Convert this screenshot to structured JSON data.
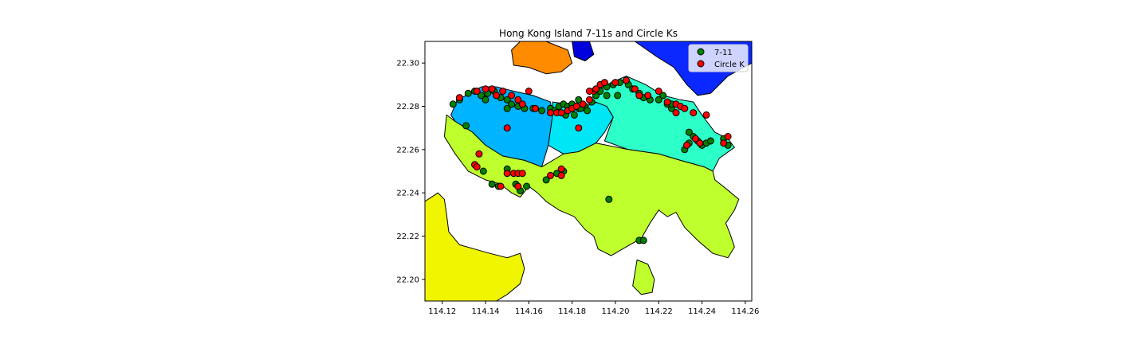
{
  "chart_data": {
    "type": "scatter",
    "title": "Hong Kong Island 7-11s and Circle Ks",
    "xlabel": "",
    "ylabel": "",
    "xlim": [
      114.112,
      114.263
    ],
    "ylim": [
      22.19,
      22.31
    ],
    "x_ticks": [
      "114.12",
      "114.14",
      "114.16",
      "114.18",
      "114.20",
      "114.22",
      "114.24",
      "114.26"
    ],
    "y_ticks": [
      "22.20",
      "22.22",
      "22.24",
      "22.26",
      "22.28",
      "22.30"
    ],
    "legend": {
      "placement": "top-right"
    },
    "districts": [
      {
        "color": "#00b4ff",
        "points": [
          [
            114.124,
            22.276
          ],
          [
            114.127,
            22.283
          ],
          [
            114.133,
            22.286
          ],
          [
            114.138,
            22.289
          ],
          [
            114.145,
            22.289
          ],
          [
            114.153,
            22.287
          ],
          [
            114.162,
            22.285
          ],
          [
            114.17,
            22.282
          ],
          [
            114.171,
            22.276
          ],
          [
            114.169,
            22.262
          ],
          [
            114.166,
            22.252
          ],
          [
            114.158,
            22.255
          ],
          [
            114.148,
            22.257
          ],
          [
            114.14,
            22.262
          ],
          [
            114.134,
            22.268
          ],
          [
            114.126,
            22.273
          ]
        ]
      },
      {
        "color": "#00e6f5",
        "points": [
          [
            114.171,
            22.282
          ],
          [
            114.178,
            22.281
          ],
          [
            114.186,
            22.28
          ],
          [
            114.192,
            22.282
          ],
          [
            114.196,
            22.28
          ],
          [
            114.199,
            22.275
          ],
          [
            114.195,
            22.268
          ],
          [
            114.191,
            22.263
          ],
          [
            114.183,
            22.259
          ],
          [
            114.176,
            22.258
          ],
          [
            114.169,
            22.262
          ],
          [
            114.171,
            22.276
          ]
        ]
      },
      {
        "color": "#2dffc8",
        "points": [
          [
            114.188,
            22.283
          ],
          [
            114.196,
            22.29
          ],
          [
            114.205,
            22.294
          ],
          [
            114.214,
            22.29
          ],
          [
            114.222,
            22.285
          ],
          [
            114.23,
            22.283
          ],
          [
            114.236,
            22.282
          ],
          [
            114.24,
            22.276
          ],
          [
            114.246,
            22.268
          ],
          [
            114.252,
            22.265
          ],
          [
            114.255,
            22.261
          ],
          [
            114.248,
            22.256
          ],
          [
            114.245,
            22.25
          ],
          [
            114.241,
            22.252
          ],
          [
            114.23,
            22.255
          ],
          [
            114.22,
            22.258
          ],
          [
            114.206,
            22.26
          ],
          [
            114.195,
            22.264
          ],
          [
            114.199,
            22.275
          ],
          [
            114.196,
            22.28
          ]
        ]
      },
      {
        "color": "#beff2d",
        "points": [
          [
            114.122,
            22.276
          ],
          [
            114.126,
            22.273
          ],
          [
            114.134,
            22.268
          ],
          [
            114.14,
            22.262
          ],
          [
            114.148,
            22.257
          ],
          [
            114.158,
            22.255
          ],
          [
            114.166,
            22.252
          ],
          [
            114.176,
            22.258
          ],
          [
            114.183,
            22.259
          ],
          [
            114.191,
            22.263
          ],
          [
            114.206,
            22.26
          ],
          [
            114.22,
            22.258
          ],
          [
            114.23,
            22.255
          ],
          [
            114.241,
            22.252
          ],
          [
            114.245,
            22.25
          ],
          [
            114.246,
            22.246
          ],
          [
            114.251,
            22.242
          ],
          [
            114.257,
            22.237
          ],
          [
            114.255,
            22.232
          ],
          [
            114.251,
            22.226
          ],
          [
            114.253,
            22.221
          ],
          [
            114.255,
            22.215
          ],
          [
            114.252,
            22.21
          ],
          [
            114.245,
            22.212
          ],
          [
            114.238,
            22.218
          ],
          [
            114.232,
            22.224
          ],
          [
            114.228,
            22.231
          ],
          [
            114.224,
            22.229
          ],
          [
            114.22,
            22.232
          ],
          [
            114.216,
            22.226
          ],
          [
            114.212,
            22.219
          ],
          [
            114.205,
            22.215
          ],
          [
            114.198,
            22.211
          ],
          [
            114.192,
            22.214
          ],
          [
            114.19,
            22.22
          ],
          [
            114.186,
            22.223
          ],
          [
            114.181,
            22.229
          ],
          [
            114.174,
            22.232
          ],
          [
            114.168,
            22.236
          ],
          [
            114.164,
            22.24
          ],
          [
            114.16,
            22.243
          ],
          [
            114.156,
            22.238
          ],
          [
            114.152,
            22.24
          ],
          [
            114.147,
            22.244
          ],
          [
            114.14,
            22.246
          ],
          [
            114.132,
            22.25
          ],
          [
            114.126,
            22.258
          ],
          [
            114.121,
            22.266
          ]
        ]
      },
      {
        "color": "#beff2d",
        "points": [
          [
            114.21,
            22.209
          ],
          [
            114.215,
            22.207
          ],
          [
            114.218,
            22.2
          ],
          [
            114.217,
            22.194
          ],
          [
            114.212,
            22.193
          ],
          [
            114.208,
            22.197
          ],
          [
            114.209,
            22.203
          ]
        ]
      },
      {
        "color": "#f0f500",
        "points": [
          [
            114.112,
            22.236
          ],
          [
            114.118,
            22.24
          ],
          [
            114.121,
            22.237
          ],
          [
            114.122,
            22.23
          ],
          [
            114.123,
            22.222
          ],
          [
            114.128,
            22.216
          ],
          [
            114.135,
            22.214
          ],
          [
            114.142,
            22.212
          ],
          [
            114.15,
            22.21
          ],
          [
            114.156,
            22.212
          ],
          [
            114.158,
            22.205
          ],
          [
            114.156,
            22.198
          ],
          [
            114.15,
            22.193
          ],
          [
            114.145,
            22.19
          ],
          [
            114.112,
            22.19
          ]
        ]
      },
      {
        "color": "#ff8c00",
        "points": [
          [
            114.152,
            22.306
          ],
          [
            114.156,
            22.31
          ],
          [
            114.168,
            22.31
          ],
          [
            114.178,
            22.306
          ],
          [
            114.18,
            22.3
          ],
          [
            114.175,
            22.296
          ],
          [
            114.168,
            22.295
          ],
          [
            114.16,
            22.298
          ],
          [
            114.153,
            22.299
          ]
        ]
      },
      {
        "color": "#0000dc",
        "points": [
          [
            114.18,
            22.31
          ],
          [
            114.188,
            22.31
          ],
          [
            114.19,
            22.304
          ],
          [
            114.186,
            22.301
          ],
          [
            114.181,
            22.303
          ]
        ]
      },
      {
        "color": "#0a28ff",
        "points": [
          [
            114.209,
            22.31
          ],
          [
            114.263,
            22.31
          ],
          [
            114.263,
            22.3
          ],
          [
            114.252,
            22.294
          ],
          [
            114.244,
            22.286
          ],
          [
            114.238,
            22.285
          ],
          [
            114.233,
            22.29
          ],
          [
            114.227,
            22.298
          ],
          [
            114.219,
            22.303
          ]
        ]
      }
    ],
    "series": [
      {
        "name": "7-11",
        "color": "#008000",
        "points": [
          [
            114.125,
            22.281
          ],
          [
            114.128,
            22.283
          ],
          [
            114.132,
            22.286
          ],
          [
            114.135,
            22.287
          ],
          [
            114.138,
            22.285
          ],
          [
            114.141,
            22.286
          ],
          [
            114.144,
            22.287
          ],
          [
            114.147,
            22.284
          ],
          [
            114.15,
            22.283
          ],
          [
            114.152,
            22.281
          ],
          [
            114.155,
            22.28
          ],
          [
            114.158,
            22.279
          ],
          [
            114.162,
            22.279
          ],
          [
            114.166,
            22.278
          ],
          [
            114.17,
            22.279
          ],
          [
            114.172,
            22.278
          ],
          [
            114.174,
            22.28
          ],
          [
            114.176,
            22.281
          ],
          [
            114.178,
            22.28
          ],
          [
            114.18,
            22.281
          ],
          [
            114.183,
            22.279
          ],
          [
            114.186,
            22.28
          ],
          [
            114.189,
            22.282
          ],
          [
            114.191,
            22.285
          ],
          [
            114.193,
            22.287
          ],
          [
            114.196,
            22.289
          ],
          [
            114.199,
            22.29
          ],
          [
            114.202,
            22.291
          ],
          [
            114.206,
            22.29
          ],
          [
            114.208,
            22.288
          ],
          [
            114.211,
            22.286
          ],
          [
            114.213,
            22.284
          ],
          [
            114.216,
            22.283
          ],
          [
            114.22,
            22.283
          ],
          [
            114.224,
            22.281
          ],
          [
            114.226,
            22.279
          ],
          [
            114.222,
            22.285
          ],
          [
            114.196,
            22.285
          ],
          [
            114.201,
            22.285
          ],
          [
            114.183,
            22.283
          ],
          [
            114.187,
            22.278
          ],
          [
            114.232,
            22.26
          ],
          [
            114.234,
            22.263
          ],
          [
            114.236,
            22.266
          ],
          [
            114.238,
            22.264
          ],
          [
            114.24,
            22.262
          ],
          [
            114.242,
            22.263
          ],
          [
            114.244,
            22.264
          ],
          [
            114.25,
            22.265
          ],
          [
            114.252,
            22.262
          ],
          [
            114.14,
            22.283
          ],
          [
            114.145,
            22.285
          ],
          [
            114.15,
            22.279
          ],
          [
            114.131,
            22.271
          ],
          [
            114.139,
            22.25
          ],
          [
            114.143,
            22.244
          ],
          [
            114.146,
            22.243
          ],
          [
            114.15,
            22.251
          ],
          [
            114.154,
            22.244
          ],
          [
            114.156,
            22.241
          ],
          [
            114.159,
            22.243
          ],
          [
            114.168,
            22.246
          ],
          [
            114.173,
            22.249
          ],
          [
            114.176,
            22.25
          ],
          [
            114.197,
            22.237
          ],
          [
            114.211,
            22.218
          ],
          [
            114.213,
            22.218
          ],
          [
            114.177,
            22.276
          ],
          [
            114.181,
            22.276
          ],
          [
            114.184,
            22.279
          ],
          [
            114.234,
            22.268
          ],
          [
            114.226,
            22.281
          ]
        ]
      },
      {
        "name": "Circle K",
        "color": "#ff0000",
        "points": [
          [
            114.128,
            22.284
          ],
          [
            114.136,
            22.287
          ],
          [
            114.14,
            22.288
          ],
          [
            114.143,
            22.288
          ],
          [
            114.145,
            22.285
          ],
          [
            114.148,
            22.287
          ],
          [
            114.152,
            22.285
          ],
          [
            114.155,
            22.283
          ],
          [
            114.157,
            22.281
          ],
          [
            114.16,
            22.287
          ],
          [
            114.163,
            22.279
          ],
          [
            114.17,
            22.277
          ],
          [
            114.173,
            22.277
          ],
          [
            114.175,
            22.277
          ],
          [
            114.178,
            22.278
          ],
          [
            114.18,
            22.279
          ],
          [
            114.182,
            22.28
          ],
          [
            114.185,
            22.281
          ],
          [
            114.188,
            22.283
          ],
          [
            114.19,
            22.287
          ],
          [
            114.193,
            22.29
          ],
          [
            114.195,
            22.291
          ],
          [
            114.2,
            22.291
          ],
          [
            114.205,
            22.292
          ],
          [
            114.209,
            22.288
          ],
          [
            114.211,
            22.285
          ],
          [
            114.215,
            22.285
          ],
          [
            114.22,
            22.287
          ],
          [
            114.224,
            22.282
          ],
          [
            114.228,
            22.281
          ],
          [
            114.23,
            22.28
          ],
          [
            114.232,
            22.279
          ],
          [
            114.228,
            22.277
          ],
          [
            114.236,
            22.277
          ],
          [
            114.188,
            22.287
          ],
          [
            114.191,
            22.288
          ],
          [
            114.183,
            22.27
          ],
          [
            114.15,
            22.27
          ],
          [
            114.137,
            22.258
          ],
          [
            114.135,
            22.253
          ],
          [
            114.136,
            22.252
          ],
          [
            114.15,
            22.249
          ],
          [
            114.153,
            22.249
          ],
          [
            114.155,
            22.249
          ],
          [
            114.157,
            22.249
          ],
          [
            114.155,
            22.243
          ],
          [
            114.147,
            22.243
          ],
          [
            114.17,
            22.248
          ],
          [
            114.175,
            22.251
          ],
          [
            114.175,
            22.248
          ],
          [
            114.233,
            22.262
          ],
          [
            114.237,
            22.265
          ],
          [
            114.239,
            22.263
          ],
          [
            114.25,
            22.263
          ],
          [
            114.252,
            22.266
          ],
          [
            114.242,
            22.276
          ]
        ]
      }
    ]
  }
}
